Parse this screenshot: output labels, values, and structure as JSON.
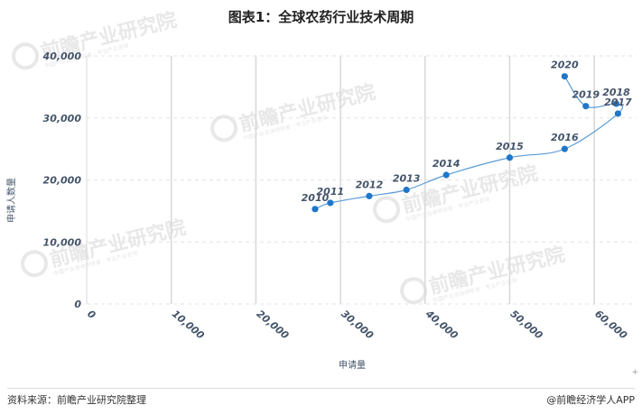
{
  "title": "图表1：全球农药行业技术周期",
  "footer": {
    "source": "资料来源：前瞻产业研究院整理",
    "brand": "@前瞻经济学人APP"
  },
  "watermark": {
    "text": "前瞻产业研究院",
    "subtext": "中国产业咨询领导者 · 专注产业咨询"
  },
  "colors": {
    "line": "#5b9bd5",
    "point": "#1f77c9",
    "grid_vertical": "#d9d9d9",
    "grid_horizontal": "#e3e3e3"
  },
  "chart_data": {
    "type": "scatter",
    "title": "图表1：全球农药行业技术周期",
    "xlabel": "申请量",
    "ylabel": "申请人数量",
    "xlim": [
      0,
      65000
    ],
    "ylim": [
      0,
      40000
    ],
    "x_ticks": [
      "0",
      "10,000",
      "20,000",
      "30,000",
      "40,000",
      "50,000",
      "60,000"
    ],
    "y_ticks": [
      "0",
      "10,000",
      "20,000",
      "30,000",
      "40,000"
    ],
    "grid": "on",
    "series": [
      {
        "points": [
          {
            "label": "2010",
            "x": 27000,
            "y": 15300
          },
          {
            "label": "2011",
            "x": 28800,
            "y": 16300
          },
          {
            "label": "2012",
            "x": 33400,
            "y": 17400
          },
          {
            "label": "2013",
            "x": 37800,
            "y": 18400
          },
          {
            "label": "2014",
            "x": 42500,
            "y": 20800
          },
          {
            "label": "2015",
            "x": 50000,
            "y": 23600
          },
          {
            "label": "2016",
            "x": 56500,
            "y": 25000
          },
          {
            "label": "2017",
            "x": 62800,
            "y": 30700
          },
          {
            "label": "2018",
            "x": 62600,
            "y": 32300
          },
          {
            "label": "2019",
            "x": 59000,
            "y": 31900
          },
          {
            "label": "2020",
            "x": 56500,
            "y": 36700
          }
        ]
      }
    ]
  }
}
